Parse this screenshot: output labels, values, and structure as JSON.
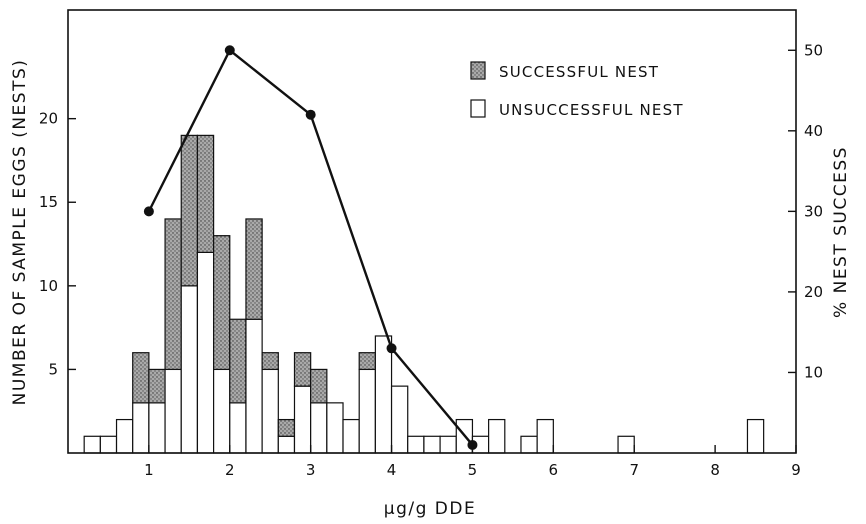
{
  "chart_data": {
    "type": "bar",
    "stacked": true,
    "xlabel": "μg/g DDE",
    "ylabel_left": "NUMBER OF SAMPLE EGGS (NESTS)",
    "ylabel_right": "% NEST SUCCESS",
    "xlim": [
      0,
      9
    ],
    "ylim_left": [
      0,
      26.5
    ],
    "ylim_right": [
      0,
      55
    ],
    "x_ticks": [
      1,
      2,
      3,
      4,
      5,
      6,
      7,
      8,
      9
    ],
    "y_ticks_left": [
      5,
      10,
      15,
      20
    ],
    "y_ticks_right": [
      10,
      20,
      30,
      40,
      50
    ],
    "x_tick_labels": [
      "1",
      "2",
      "3",
      "4",
      "5",
      "6",
      "7",
      "8",
      "9"
    ],
    "y_tick_labels_left": [
      "5",
      "10",
      "15",
      "20"
    ],
    "y_tick_labels_right": [
      "10",
      "20",
      "30",
      "40",
      "50"
    ],
    "bin_width": 0.2,
    "bin_starts": [
      0.2,
      0.4,
      0.6,
      0.8,
      1.0,
      1.2,
      1.4,
      1.6,
      1.8,
      2.0,
      2.2,
      2.4,
      2.6,
      2.8,
      3.0,
      3.2,
      3.4,
      3.6,
      3.8,
      4.0,
      4.2,
      4.4,
      4.6,
      4.8,
      5.0,
      5.2,
      5.6,
      5.8,
      6.8,
      8.4
    ],
    "series": [
      {
        "name": "UNSUCCESSFUL NEST",
        "color": "#ffffff",
        "values": [
          1,
          1,
          2,
          3,
          3,
          5,
          10,
          12,
          5,
          3,
          8,
          5,
          1,
          4,
          3,
          3,
          2,
          5,
          7,
          4,
          1,
          1,
          1,
          2,
          1,
          2,
          1,
          2,
          1,
          2
        ]
      },
      {
        "name": "SUCCESSFUL NEST",
        "color": "#bdbdbd",
        "pattern": "stippled",
        "values": [
          0,
          0,
          0,
          3,
          2,
          9,
          9,
          7,
          8,
          5,
          6,
          1,
          1,
          2,
          2,
          0,
          0,
          1,
          0,
          0,
          0,
          0,
          0,
          0,
          0,
          0,
          0,
          0,
          0,
          0
        ]
      }
    ],
    "success_line": {
      "axis": "right",
      "x": [
        1,
        2,
        3,
        4,
        5
      ],
      "y": [
        30,
        50,
        42,
        13,
        1
      ]
    },
    "legend": {
      "position": "top-right",
      "entries": [
        "SUCCESSFUL NEST",
        "UNSUCCESSFUL NEST"
      ]
    },
    "grid": false
  }
}
